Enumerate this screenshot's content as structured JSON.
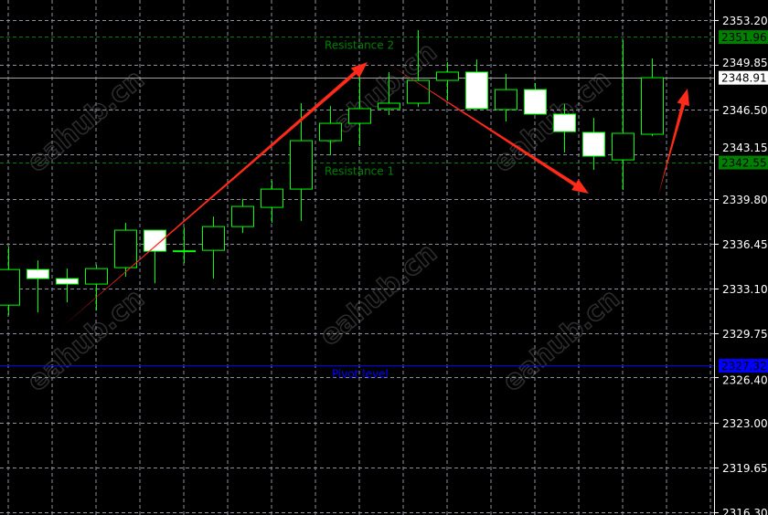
{
  "chart_data": {
    "type": "candlestick",
    "title": "",
    "ylim": [
      2316.3,
      2353.2
    ],
    "y_ticks": [
      "2353.20",
      "2349.85",
      "2346.50",
      "2343.15",
      "2339.80",
      "2336.45",
      "2333.10",
      "2329.75",
      "2326.40",
      "2323.00",
      "2319.65",
      "2316.30"
    ],
    "grid": true,
    "colors": {
      "background": "#000000",
      "bull": "#00ff00",
      "bear_fill": "#ffffff",
      "grid": "#8a8f9a",
      "arrow": "#ff2a1a",
      "resistance": "#008000",
      "pivot": "#0000ff",
      "current": "#a0a0a0"
    },
    "candles": [
      {
        "o": 2331.83,
        "h": 2336.21,
        "l": 2331.08,
        "c": 2334.5
      },
      {
        "o": 2334.5,
        "h": 2335.19,
        "l": 2331.28,
        "c": 2333.82
      },
      {
        "o": 2333.82,
        "h": 2334.57,
        "l": 2332.04,
        "c": 2333.41
      },
      {
        "o": 2333.41,
        "h": 2334.84,
        "l": 2331.42,
        "c": 2334.57
      },
      {
        "o": 2334.64,
        "h": 2338.0,
        "l": 2333.96,
        "c": 2337.45
      },
      {
        "o": 2337.45,
        "h": 2337.45,
        "l": 2333.47,
        "c": 2335.87
      },
      {
        "o": 2335.87,
        "h": 2337.65,
        "l": 2334.98,
        "c": 2335.87
      },
      {
        "o": 2335.94,
        "h": 2338.47,
        "l": 2333.82,
        "c": 2337.72
      },
      {
        "o": 2337.72,
        "h": 2339.8,
        "l": 2337.24,
        "c": 2339.23
      },
      {
        "o": 2339.16,
        "h": 2341.15,
        "l": 2338.0,
        "c": 2340.53
      },
      {
        "o": 2340.53,
        "h": 2346.97,
        "l": 2338.13,
        "c": 2344.16
      },
      {
        "o": 2344.16,
        "h": 2346.76,
        "l": 2343.06,
        "c": 2345.46
      },
      {
        "o": 2345.46,
        "h": 2349.43,
        "l": 2343.75,
        "c": 2346.56
      },
      {
        "o": 2346.56,
        "h": 2349.3,
        "l": 2346.08,
        "c": 2346.97
      },
      {
        "o": 2346.97,
        "h": 2352.45,
        "l": 2346.69,
        "c": 2348.68
      },
      {
        "o": 2348.68,
        "h": 2350.05,
        "l": 2347.17,
        "c": 2349.3
      },
      {
        "o": 2349.3,
        "h": 2350.25,
        "l": 2346.56,
        "c": 2346.56
      },
      {
        "o": 2346.49,
        "h": 2349.16,
        "l": 2345.6,
        "c": 2347.99
      },
      {
        "o": 2347.99,
        "h": 2348.47,
        "l": 2346.15,
        "c": 2346.15
      },
      {
        "o": 2346.15,
        "h": 2346.9,
        "l": 2343.27,
        "c": 2344.84
      },
      {
        "o": 2344.78,
        "h": 2345.87,
        "l": 2341.97,
        "c": 2343.0
      },
      {
        "o": 2342.72,
        "h": 2351.69,
        "l": 2340.46,
        "c": 2344.71
      },
      {
        "o": 2344.64,
        "h": 2350.32,
        "l": 2344.5,
        "c": 2348.88
      }
    ],
    "levels": [
      {
        "name": "Resistance 2",
        "price": 2351.96,
        "price_label": "2351.96",
        "style": "dashed",
        "color": "#008000",
        "tag_bg": "#008000"
      },
      {
        "name": "Resistance 1",
        "price": 2342.55,
        "price_label": "2342.55",
        "style": "dashed",
        "color": "#008000",
        "tag_bg": "#008000"
      },
      {
        "name": "Pivot level",
        "price": 2327.32,
        "price_label": "2327.32",
        "style": "solid",
        "color": "#0000ff",
        "tag_bg": "#0000ff"
      }
    ],
    "current_price": {
      "price": 2348.91,
      "label": "2348.91"
    },
    "watermark": "eahub.cn"
  }
}
